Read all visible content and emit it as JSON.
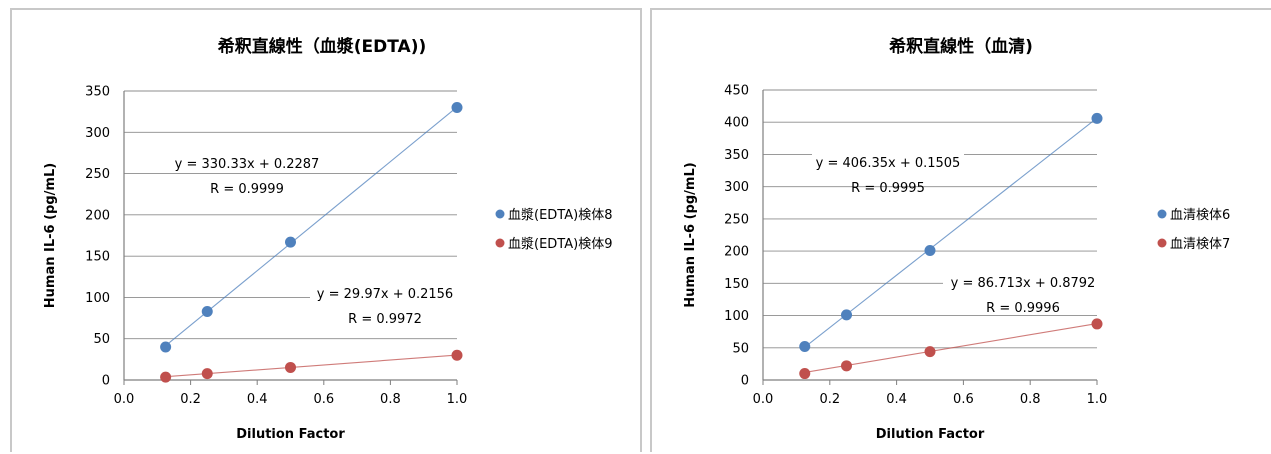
{
  "chart_data": [
    {
      "type": "scatter",
      "title": "希釈直線性（血漿(EDTA))",
      "xlabel": "Dilution Factor",
      "ylabel": "Human IL-6  (pg/mL)",
      "xlim": [
        0.0,
        1.0
      ],
      "ylim": [
        0,
        350
      ],
      "xticks": [
        "0.0",
        "0.2",
        "0.4",
        "0.6",
        "0.8",
        "1.0"
      ],
      "yticks": [
        "0",
        "50",
        "100",
        "150",
        "200",
        "250",
        "300",
        "350"
      ],
      "grid": "horizontal",
      "legend_position": "right",
      "series": [
        {
          "name": "血漿(EDTA)検体8",
          "color": "#4f81bd",
          "x": [
            0.125,
            0.25,
            0.5,
            1.0
          ],
          "y": [
            40,
            83,
            167,
            330
          ],
          "trendline": {
            "slope": 330.33,
            "intercept": 0.2287,
            "equation": "y = 330.33x + 0.2287",
            "r": "R = 0.9999"
          }
        },
        {
          "name": "血漿(EDTA)検体9",
          "color": "#c0504d",
          "x": [
            0.125,
            0.25,
            0.5,
            1.0
          ],
          "y": [
            3.5,
            7.7,
            15.2,
            30.0
          ],
          "trendline": {
            "slope": 29.97,
            "intercept": 0.2156,
            "equation": "y = 29.97x + 0.2156",
            "r": "R = 0.9972"
          }
        }
      ]
    },
    {
      "type": "scatter",
      "title": "希釈直線性（血清)",
      "xlabel": "Dilution Factor",
      "ylabel": "Human IL-6  (pg/mL)",
      "xlim": [
        0.0,
        1.0
      ],
      "ylim": [
        0,
        450
      ],
      "xticks": [
        "0.0",
        "0.2",
        "0.4",
        "0.6",
        "0.8",
        "1.0"
      ],
      "yticks": [
        "0",
        "50",
        "100",
        "150",
        "200",
        "250",
        "300",
        "350",
        "400",
        "450"
      ],
      "grid": "horizontal",
      "legend_position": "right",
      "series": [
        {
          "name": "血清検体6",
          "color": "#4f81bd",
          "x": [
            0.125,
            0.25,
            0.5,
            1.0
          ],
          "y": [
            52,
            101,
            201,
            406
          ],
          "trendline": {
            "slope": 406.35,
            "intercept": 0.1505,
            "equation": "y = 406.35x + 0.1505",
            "r": "R = 0.9995"
          }
        },
        {
          "name": "血清検体7",
          "color": "#c0504d",
          "x": [
            0.125,
            0.25,
            0.5,
            1.0
          ],
          "y": [
            10,
            22,
            44,
            87
          ],
          "trendline": {
            "slope": 86.713,
            "intercept": 0.8792,
            "equation": "y = 86.713x + 0.8792",
            "r": "R = 0.9996"
          }
        }
      ]
    }
  ]
}
